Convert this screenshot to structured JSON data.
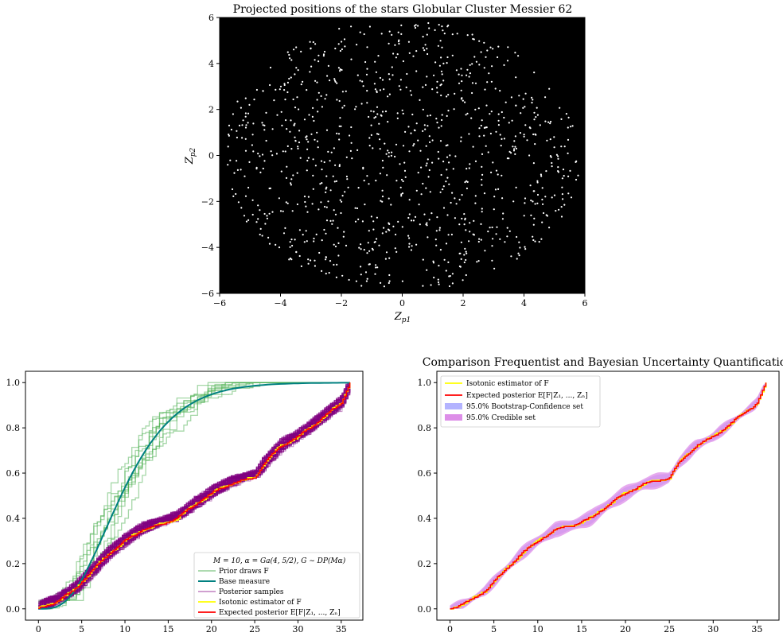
{
  "chart_data": [
    {
      "type": "scatter",
      "title": "Projected positions of the stars Globular Cluster Messier 62",
      "xlabel": "Z_{p1}",
      "ylabel": "Z_{p2}",
      "xlim": [
        -6,
        6
      ],
      "ylim": [
        -6,
        6
      ],
      "xticks": [
        "−6",
        "−4",
        "−2",
        "0",
        "2",
        "4",
        "6"
      ],
      "yticks": [
        "−6",
        "−4",
        "−2",
        "0",
        "2",
        "4",
        "6"
      ],
      "background": "#000000",
      "point_color": "#ffffff",
      "grid": false,
      "note": "about 1000 stars roughly uniformly distributed in a disc of radius ~5.9"
    },
    {
      "type": "line",
      "title": "",
      "xlabel": "",
      "ylabel": "",
      "xlim": [
        -1.5,
        37.5
      ],
      "ylim": [
        -0.05,
        1.05
      ],
      "xticks": [
        "0",
        "5",
        "10",
        "15",
        "20",
        "25",
        "30",
        "35"
      ],
      "yticks": [
        "0.0",
        "0.2",
        "0.4",
        "0.6",
        "0.8",
        "1.0"
      ],
      "legend_title": "M = 10, α = Ga(4, 5/2), G ∼ DP(Mα)",
      "legend_position": "lower-right",
      "grid": false,
      "series": [
        {
          "name": "Prior draws F",
          "color": "#4caf50",
          "count": 10,
          "opacity": 0.5
        },
        {
          "name": "Base measure",
          "color": "#008080",
          "distribution": "Gamma(4, 5/2) CDF"
        },
        {
          "name": "Posterior samples",
          "color": "#800080",
          "count": 100,
          "opacity": 0.5
        },
        {
          "name": "Isotonic estimator of F",
          "color": "#ffff00"
        },
        {
          "name": "Expected posterior E[F|Z1, ..., Zn]",
          "color": "#ff0000"
        }
      ],
      "ecdf_x": [
        0,
        2,
        4,
        6,
        8,
        10,
        12,
        14,
        16,
        18,
        20,
        22,
        24,
        25,
        26,
        27,
        28,
        30,
        32,
        34,
        35,
        36
      ],
      "ecdf_y": [
        0.0,
        0.03,
        0.08,
        0.16,
        0.24,
        0.3,
        0.35,
        0.37,
        0.4,
        0.46,
        0.51,
        0.55,
        0.57,
        0.58,
        0.64,
        0.68,
        0.72,
        0.76,
        0.82,
        0.88,
        0.91,
        1.0
      ]
    },
    {
      "type": "area",
      "title": "Comparison Frequentist and Bayesian Uncertainty Quantification",
      "xlabel": "",
      "ylabel": "",
      "xlim": [
        -1.5,
        37.5
      ],
      "ylim": [
        -0.05,
        1.05
      ],
      "xticks": [
        "0",
        "5",
        "10",
        "15",
        "20",
        "25",
        "30",
        "35"
      ],
      "yticks": [
        "0.0",
        "0.2",
        "0.4",
        "0.6",
        "0.8",
        "1.0"
      ],
      "legend_position": "upper-left",
      "grid": false,
      "series": [
        {
          "name": "Isotonic estimator of F",
          "color": "#ffff00"
        },
        {
          "name": "Expected posterior E[F|Z1, ..., Zn]",
          "color": "#ff0000"
        },
        {
          "name": "95.0% Bootstrap-Confidence set",
          "color": "#b3b3ff"
        },
        {
          "name": "95.0% Credible set",
          "color": "#dd8ee8"
        }
      ],
      "ecdf_x": [
        0,
        2,
        4,
        6,
        8,
        10,
        12,
        14,
        16,
        18,
        20,
        22,
        24,
        25,
        26,
        27,
        28,
        30,
        32,
        34,
        35,
        36
      ],
      "ecdf_y": [
        0.0,
        0.03,
        0.08,
        0.16,
        0.24,
        0.3,
        0.35,
        0.37,
        0.4,
        0.46,
        0.51,
        0.55,
        0.57,
        0.58,
        0.64,
        0.68,
        0.72,
        0.76,
        0.82,
        0.88,
        0.91,
        1.0
      ]
    }
  ],
  "labels": {
    "scatter_title": "Projected positions of the stars Globular Cluster Messier 62",
    "scatter_xlabel": "Z",
    "scatter_xlabel_sub": "p1",
    "scatter_ylabel": "Z",
    "scatter_ylabel_sub": "p2",
    "left_legend_title": "M = 10, α = Ga(4, 5/2), G ∼ DP(Mα)",
    "left_legend_items": [
      "Prior draws F",
      "Base measure",
      "Posterior samples",
      "Isotonic estimator of F",
      "Expected posterior E[F|Z₁, ..., Zₙ]"
    ],
    "right_title": "Comparison Frequentist and Bayesian Uncertainty Quantification",
    "right_legend_items": [
      "Isotonic estimator of F",
      "Expected posterior E[F|Z₁, ..., Zₙ]",
      "95.0% Bootstrap-Confidence set",
      "95.0% Credible set"
    ]
  }
}
